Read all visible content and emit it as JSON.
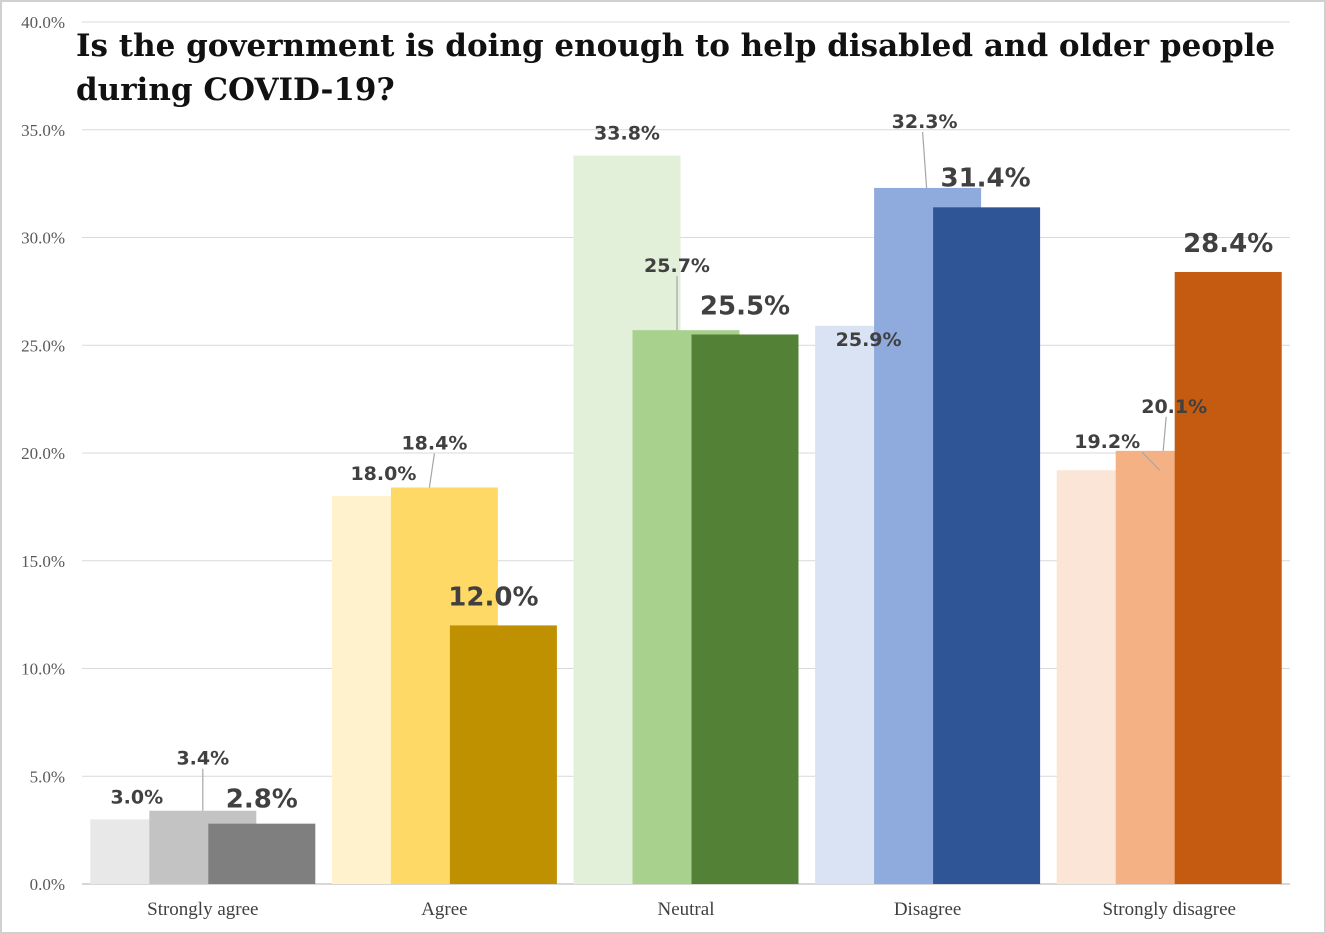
{
  "chart_data": {
    "type": "bar",
    "title": "Is the government is doing enough to help disabled and older people during COVID-19?",
    "categories": [
      "Strongly agree",
      "Agree",
      "Neutral",
      "Disagree",
      "Strongly disagree"
    ],
    "series": [
      {
        "values": [
          3.0,
          18.0,
          33.8,
          25.9,
          19.2
        ]
      },
      {
        "values": [
          3.4,
          18.4,
          25.7,
          32.3,
          20.1
        ]
      },
      {
        "values": [
          2.8,
          12.0,
          25.5,
          31.4,
          28.4
        ]
      }
    ],
    "data_labels": [
      [
        "3.0%",
        "18.0%",
        "33.8%",
        "25.9%",
        "19.2%"
      ],
      [
        "3.4%",
        "18.4%",
        "25.7%",
        "32.3%",
        "20.1%"
      ],
      [
        "2.8%",
        "12.0%",
        "25.5%",
        "31.4%",
        "28.4%"
      ]
    ],
    "bar_colors": [
      [
        "#e8e8e8",
        "#c3c3c3",
        "#7f7f7f"
      ],
      [
        "#fff2cc",
        "#ffd966",
        "#bf9000"
      ],
      [
        "#e2efd9",
        "#a9d18e",
        "#538135"
      ],
      [
        "#dae3f3",
        "#8faadc",
        "#2f5597"
      ],
      [
        "#fbe5d6",
        "#f4b183",
        "#c55a11"
      ]
    ],
    "yticks": [
      "0.0%",
      "5.0%",
      "10.0%",
      "15.0%",
      "20.0%",
      "25.0%",
      "30.0%",
      "35.0%",
      "40.0%"
    ],
    "ylim": [
      0,
      40
    ],
    "grid": true,
    "legend": "none"
  }
}
